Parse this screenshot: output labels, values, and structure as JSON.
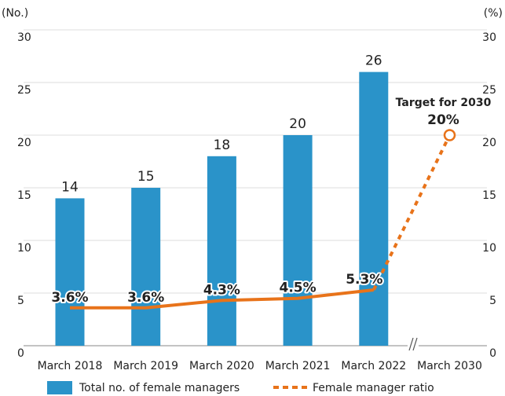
{
  "chart_data": {
    "type": "bar",
    "y_axis_label": "(No.)",
    "y2_axis_label": "(%)",
    "categories": [
      "March 2018",
      "March 2019",
      "March 2020",
      "March 2021",
      "March 2022",
      "March 2030"
    ],
    "series": [
      {
        "name": "Total no. of female managers",
        "type": "bar",
        "color": "#2a93c9",
        "values": [
          14,
          15,
          18,
          20,
          26,
          null
        ]
      },
      {
        "name": "Female manager ratio",
        "type": "line",
        "axis": "y2",
        "color": "#e8731a",
        "values": [
          3.6,
          3.6,
          4.3,
          4.5,
          5.3,
          20
        ],
        "value_labels": [
          "3.6%",
          "3.6%",
          "4.3%",
          "4.5%",
          "5.3%",
          "20%"
        ]
      }
    ],
    "annotation": "Target for 2030",
    "ylim": [
      0,
      30
    ],
    "yticks": [
      0,
      5,
      10,
      15,
      20,
      25,
      30
    ],
    "y2lim": [
      0,
      30
    ],
    "y2ticks": [
      0,
      5,
      10,
      15,
      20,
      25,
      30
    ],
    "grid": true,
    "legend": "bottom"
  }
}
